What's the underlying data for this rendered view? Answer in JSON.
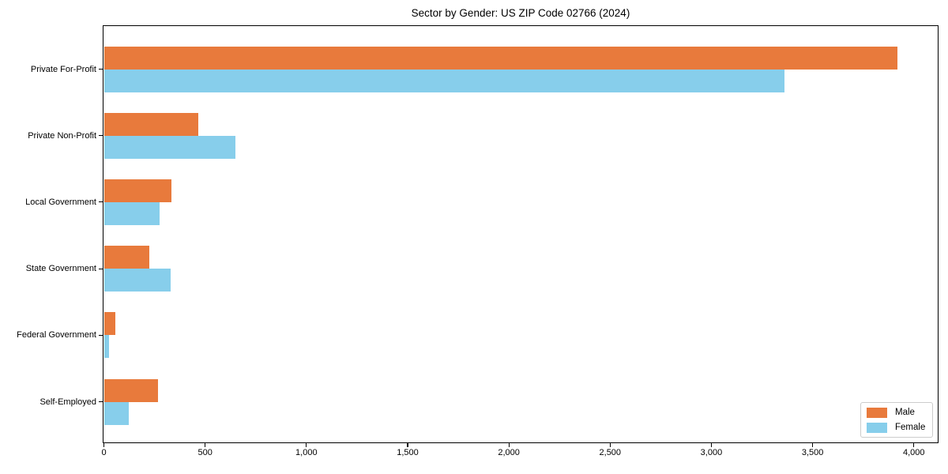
{
  "chart_data": {
    "type": "bar",
    "orientation": "horizontal",
    "title": "Sector by Gender: US ZIP Code 02766 (2024)",
    "categories": [
      "Private For-Profit",
      "Private Non-Profit",
      "Local Government",
      "State Government",
      "Federal Government",
      "Self-Employed"
    ],
    "series": [
      {
        "name": "Male",
        "color": "#E87A3C",
        "values": [
          3920,
          465,
          333,
          224,
          58,
          266
        ]
      },
      {
        "name": "Female",
        "color": "#87CEEB",
        "values": [
          3360,
          650,
          276,
          328,
          27,
          123
        ]
      }
    ],
    "xlim": [
      0,
      4116
    ],
    "x_ticks": [
      {
        "value": 0,
        "label": "0"
      },
      {
        "value": 500,
        "label": "500"
      },
      {
        "value": 1000,
        "label": "1,000"
      },
      {
        "value": 1500,
        "label": "1,500"
      },
      {
        "value": 2000,
        "label": "2,000"
      },
      {
        "value": 2500,
        "label": "2,500"
      },
      {
        "value": 3000,
        "label": "3,000"
      },
      {
        "value": 3500,
        "label": "3,500"
      },
      {
        "value": 4000,
        "label": "4,000"
      }
    ],
    "xlabel": "",
    "ylabel": "",
    "grid": false,
    "legend_position": "lower right",
    "legend_items": [
      {
        "label": "Male",
        "color": "#E87A3C"
      },
      {
        "label": "Female",
        "color": "#87CEEB"
      }
    ]
  }
}
